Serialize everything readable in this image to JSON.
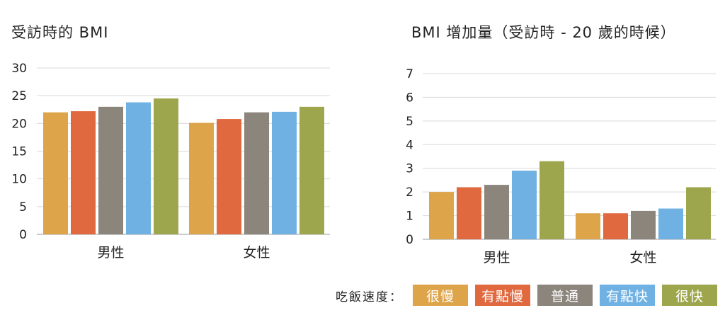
{
  "legend": {
    "title": "吃飯速度：",
    "items": [
      {
        "label": "很慢",
        "color": "#dda449"
      },
      {
        "label": "有點慢",
        "color": "#e0693f"
      },
      {
        "label": "普通",
        "color": "#8c857c"
      },
      {
        "label": "有點快",
        "color": "#6fb1e2"
      },
      {
        "label": "很快",
        "color": "#9ea64d"
      }
    ]
  },
  "chart_data": [
    {
      "type": "bar",
      "title": "受訪時的 BMI",
      "categories": [
        "男性",
        "女性"
      ],
      "ylim": [
        0,
        30
      ],
      "yticks": [
        0,
        5,
        10,
        15,
        20,
        25,
        30
      ],
      "grid": true,
      "series": [
        {
          "name": "很慢",
          "values": [
            22.0,
            20.1
          ]
        },
        {
          "name": "有點慢",
          "values": [
            22.2,
            20.8
          ]
        },
        {
          "name": "普通",
          "values": [
            23.0,
            22.0
          ]
        },
        {
          "name": "有點快",
          "values": [
            23.8,
            22.1
          ]
        },
        {
          "name": "很快",
          "values": [
            24.5,
            23.0
          ]
        }
      ]
    },
    {
      "type": "bar",
      "title": "BMI 增加量（受訪時 - 20 歲的時候）",
      "categories": [
        "男性",
        "女性"
      ],
      "ylim": [
        0,
        7
      ],
      "yticks": [
        0,
        1,
        2,
        3,
        4,
        5,
        6,
        7
      ],
      "grid": true,
      "series": [
        {
          "name": "很慢",
          "values": [
            2.0,
            1.1
          ]
        },
        {
          "name": "有點慢",
          "values": [
            2.2,
            1.1
          ]
        },
        {
          "name": "普通",
          "values": [
            2.3,
            1.2
          ]
        },
        {
          "name": "有點快",
          "values": [
            2.9,
            1.3
          ]
        },
        {
          "name": "很快",
          "values": [
            3.3,
            2.2
          ]
        }
      ]
    }
  ]
}
